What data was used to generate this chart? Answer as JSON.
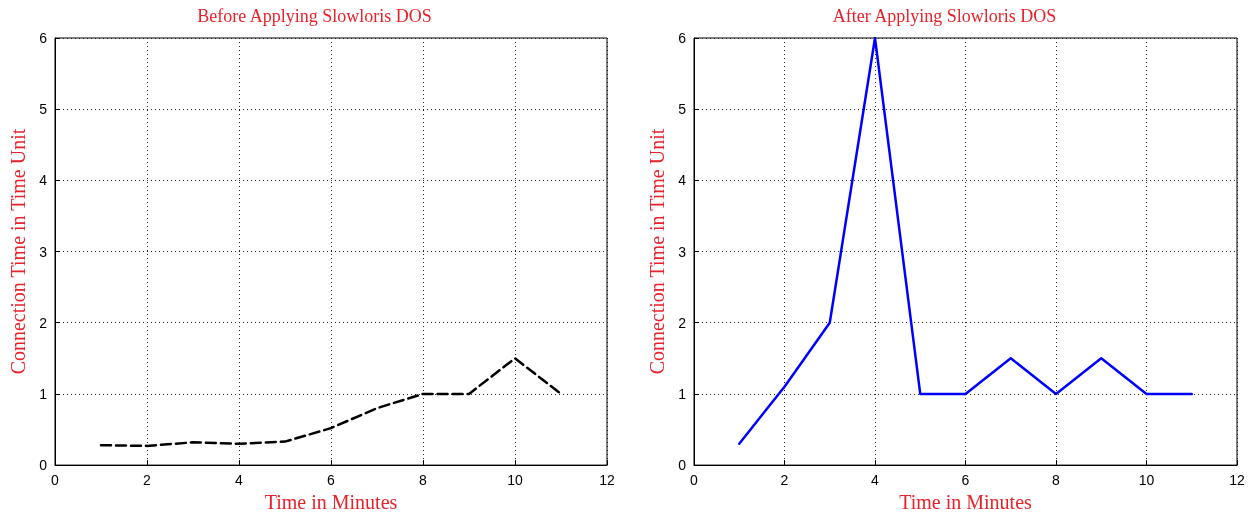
{
  "chart_data": [
    {
      "type": "line",
      "title": "Before Applying Slowloris DOS",
      "xlabel": "Time in Minutes",
      "ylabel": "Connection Time in Time Unit",
      "x": [
        1,
        2,
        3,
        4,
        5,
        6,
        7,
        8,
        9,
        10,
        11
      ],
      "series": [
        {
          "color": "#000000",
          "values": [
            0.28,
            0.27,
            0.32,
            0.3,
            0.33,
            0.52,
            0.8,
            1.0,
            1.0,
            1.5,
            1.0
          ]
        }
      ],
      "xlim": [
        0,
        12
      ],
      "xticks": [
        0,
        2,
        4,
        6,
        8,
        10,
        12
      ],
      "ylim": [
        0,
        6
      ],
      "yticks": [
        0,
        1,
        2,
        3,
        4,
        5,
        6
      ],
      "grid": true,
      "line_style": "dashed",
      "marker": "none"
    },
    {
      "type": "line",
      "title": "After Applying Slowloris DOS",
      "xlabel": "Time in Minutes",
      "ylabel": "Connection Time in Time Unit",
      "x": [
        1,
        2,
        3,
        4,
        5,
        6,
        7,
        8,
        9,
        10,
        11
      ],
      "series": [
        {
          "color": "#0000ff",
          "values": [
            0.3,
            1.1,
            2.0,
            6.0,
            1.0,
            1.0,
            1.5,
            1.0,
            1.5,
            1.0,
            1.0
          ]
        }
      ],
      "xlim": [
        0,
        12
      ],
      "xticks": [
        0,
        2,
        4,
        6,
        8,
        10,
        12
      ],
      "ylim": [
        0,
        6
      ],
      "yticks": [
        0,
        1,
        2,
        3,
        4,
        5,
        6
      ],
      "grid": true,
      "line_style": "solid",
      "marker": "none"
    }
  ]
}
